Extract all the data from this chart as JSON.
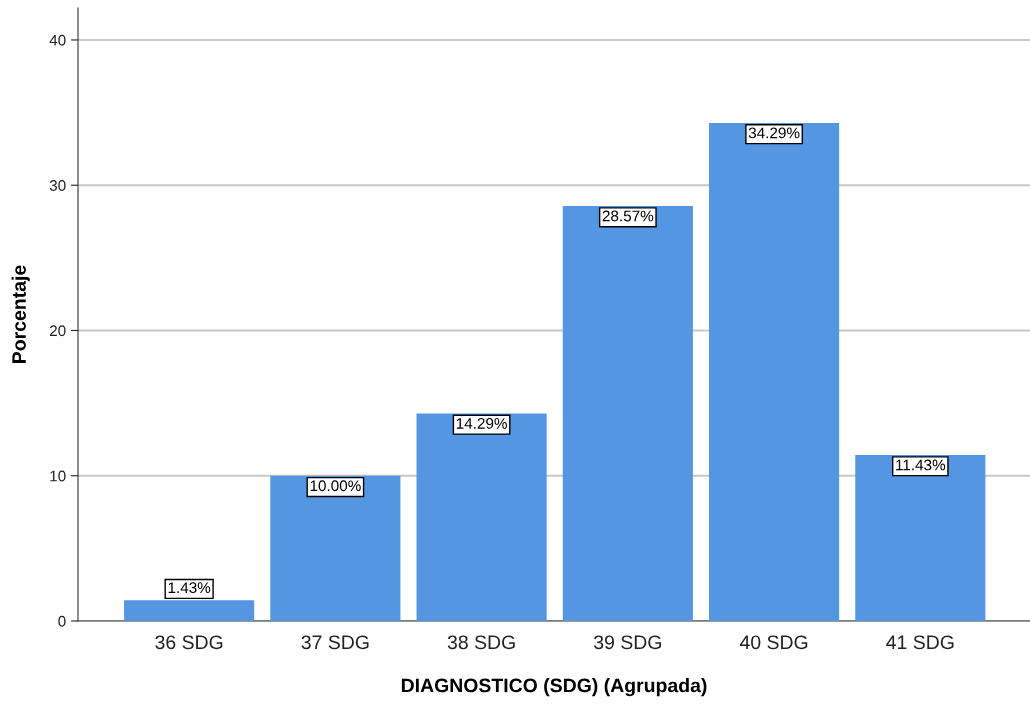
{
  "chart_data": {
    "type": "bar",
    "xlabel": "DIAGNOSTICO (SDG) (Agrupada)",
    "ylabel": "Porcentaje",
    "categories": [
      "36 SDG",
      "37 SDG",
      "38 SDG",
      "39 SDG",
      "40 SDG",
      "41 SDG"
    ],
    "values": [
      1.43,
      10.0,
      14.29,
      28.57,
      34.29,
      11.43
    ],
    "value_labels": [
      "1.43%",
      "10.00%",
      "14.29%",
      "28.57%",
      "34.29%",
      "11.43%"
    ],
    "color": "#5596e2",
    "ylim": [
      0,
      42.2
    ],
    "yticks": [
      0,
      10,
      20,
      30,
      40
    ],
    "grid": "y"
  }
}
